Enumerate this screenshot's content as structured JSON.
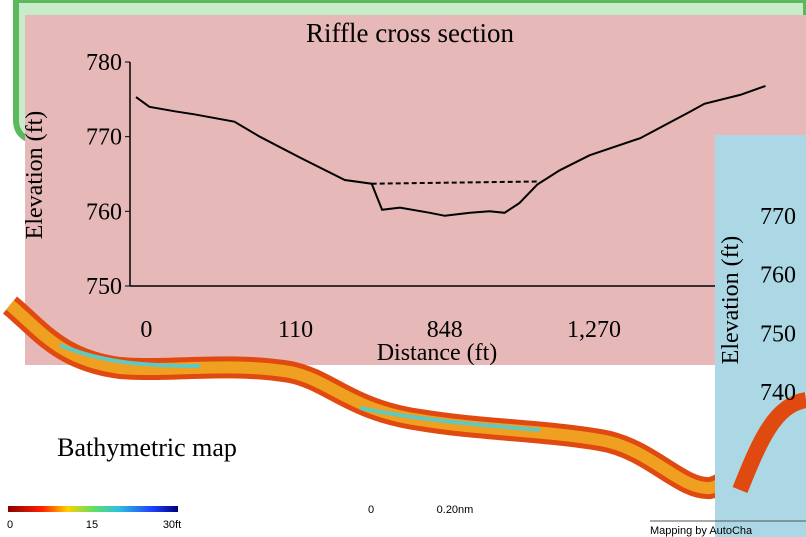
{
  "chart_data": [
    {
      "type": "line",
      "title": "Riffle cross section",
      "x_label": "Distance (ft)",
      "y_label": "Elevation (ft)",
      "xlim": [
        -0.11,
        4.2
      ],
      "xticks": [
        {
          "value": 0,
          "label": "0"
        },
        {
          "value": 1,
          "label": "110"
        },
        {
          "value": 2,
          "label": "848"
        },
        {
          "value": 3,
          "label": "1,270"
        }
      ],
      "ylim": [
        750,
        780
      ],
      "yticks": [
        750,
        760,
        770,
        780
      ],
      "series": [
        {
          "color": "#000000",
          "dash": false,
          "x": [
            -0.07,
            0.02,
            0.19,
            0.32,
            0.59,
            0.76,
            1.03,
            1.33,
            1.51,
            1.58,
            1.7,
            1.9,
            2.0,
            2.17,
            2.3,
            2.4,
            2.5,
            2.62,
            2.77,
            2.97,
            3.31,
            3.64,
            3.74,
            3.98,
            4.15
          ],
          "values": [
            775.3,
            774,
            773.4,
            773,
            772,
            770,
            767.2,
            764.2,
            763.7,
            760.2,
            760.5,
            759.8,
            759.4,
            759.8,
            760.0,
            759.8,
            761.1,
            763.6,
            765.5,
            767.5,
            769.8,
            773.3,
            774.4,
            775.6,
            776.8
          ]
        },
        {
          "color": "#000000",
          "dash": true,
          "x": [
            1.51,
            2.62
          ],
          "values": [
            763.7,
            764.0
          ]
        }
      ]
    },
    {
      "type": "line",
      "y_label": "Elevation (ft)",
      "ylim": [
        740,
        770
      ],
      "yticks": [
        740,
        750,
        760,
        770
      ],
      "series": []
    }
  ],
  "map": {
    "title": "Bathymetric map",
    "colorbar_labels": [
      "0",
      "15",
      "30ft"
    ],
    "scale_labels": [
      "0",
      "0.20nm"
    ],
    "credit": "Mapping by AutoCha"
  }
}
